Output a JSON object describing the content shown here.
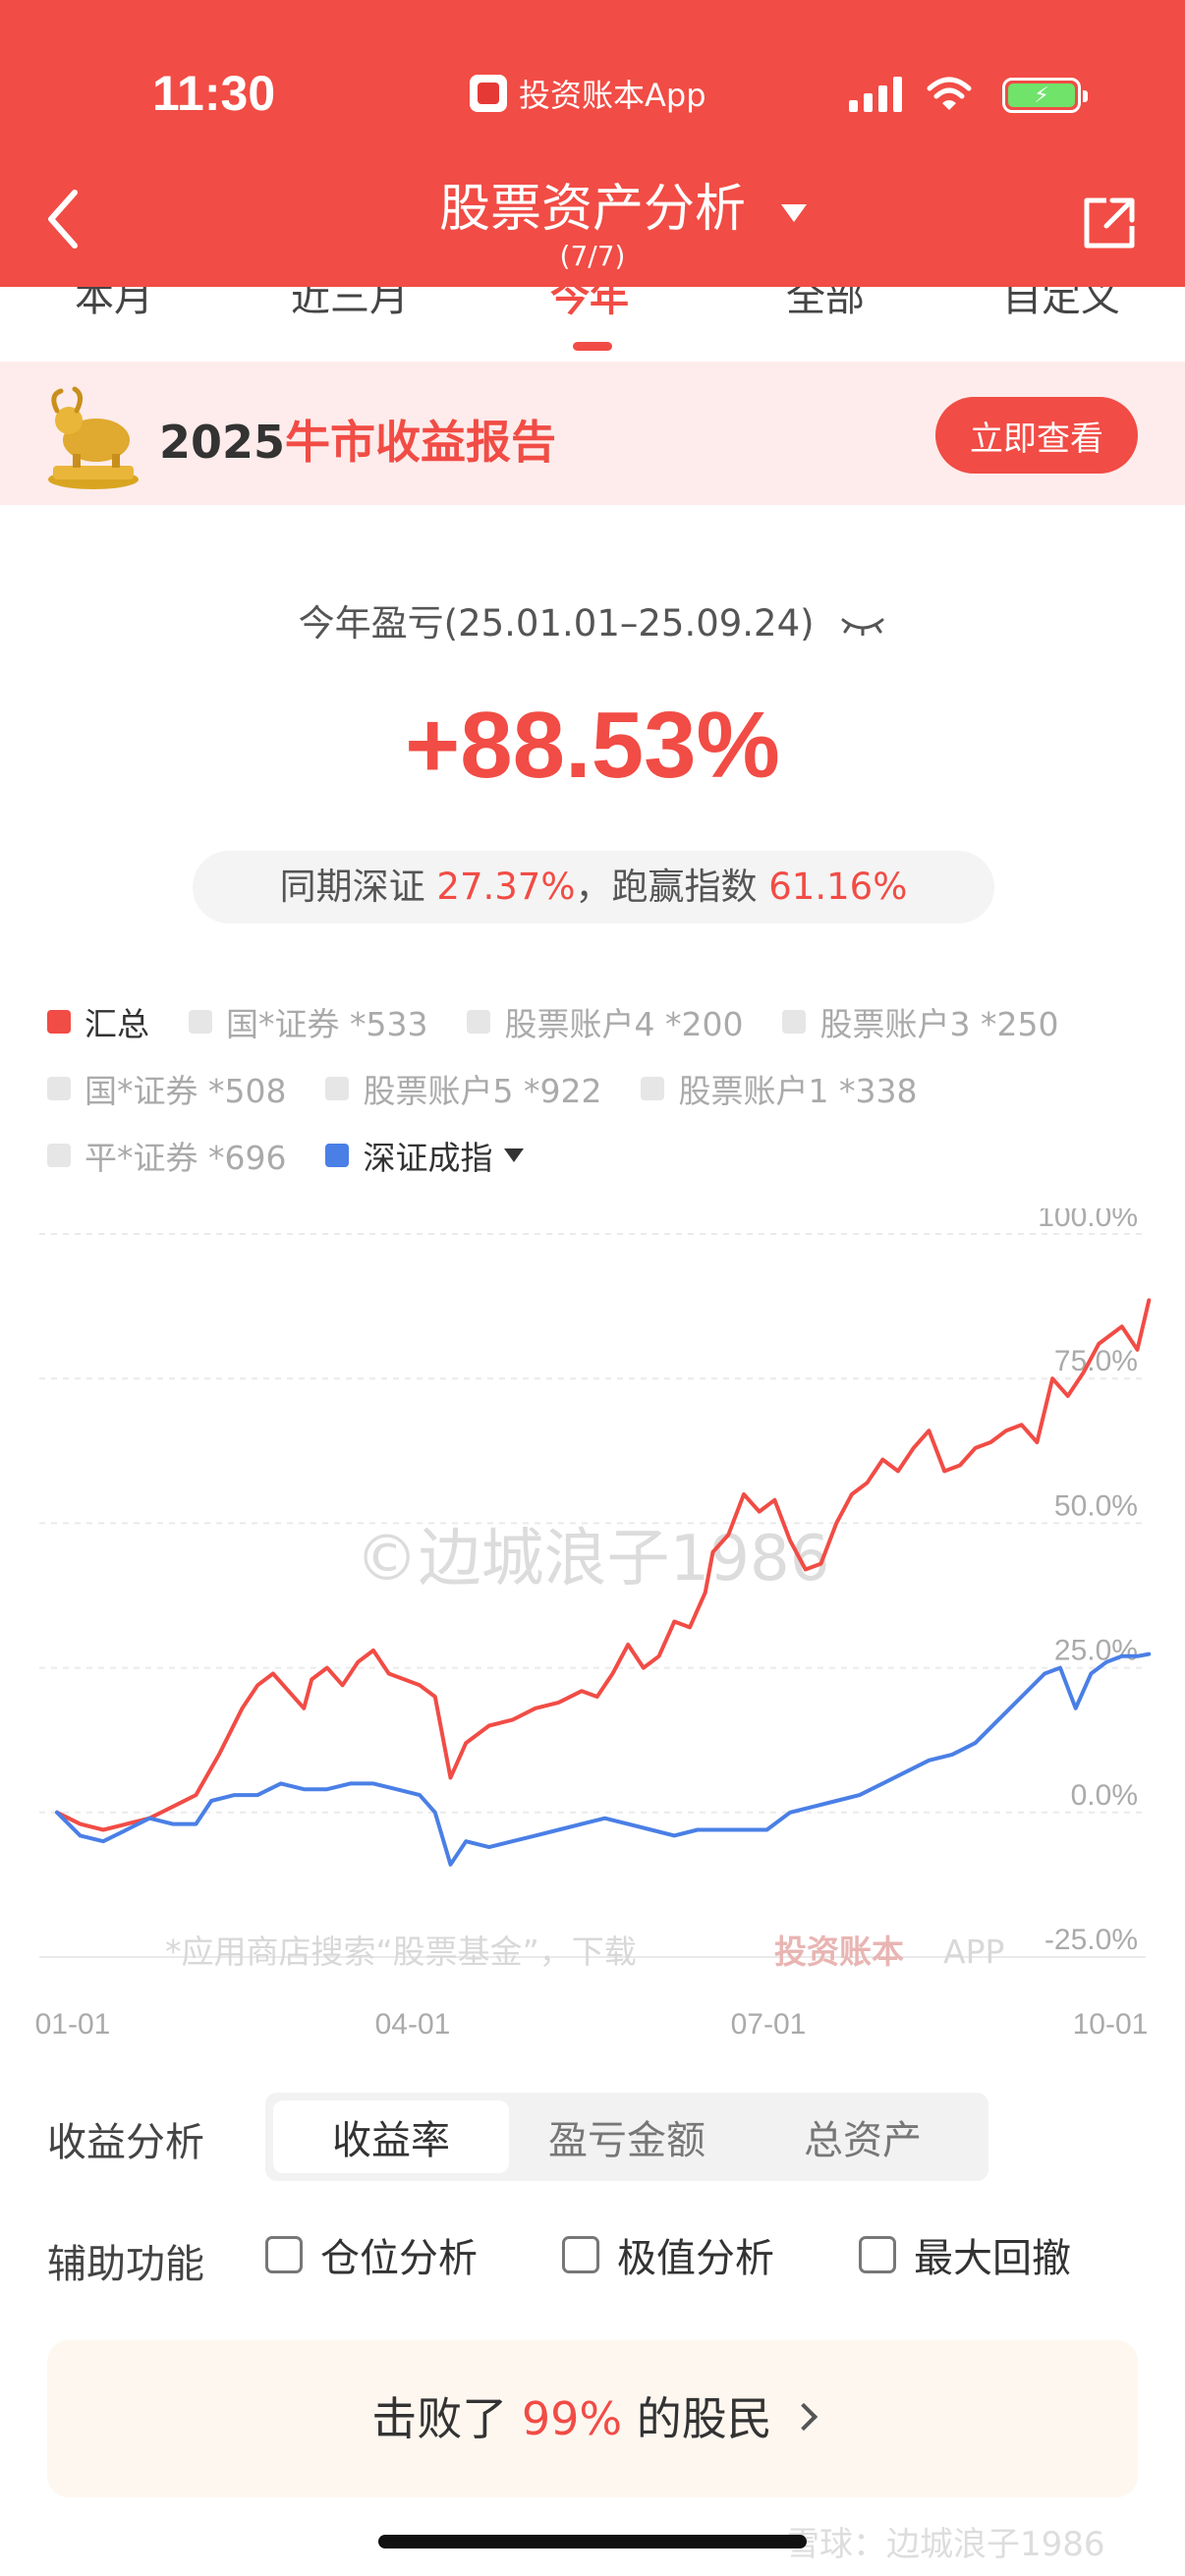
{
  "status": {
    "time": "11:30",
    "app_label": "投资账本App",
    "battery_icon": "battery-charging-icon"
  },
  "header": {
    "title": "股票资产分析",
    "subtitle": "(7/7)"
  },
  "tabs": [
    "本月",
    "近三月",
    "今年",
    "全部",
    "自定义"
  ],
  "active_tab": "今年",
  "banner": {
    "year": "2025",
    "text": "牛市收益报告",
    "button": "立即查看"
  },
  "summary": {
    "period": "今年盈亏(25.01.01–25.09.24)",
    "return_pct": "+88.53%",
    "compare_prefix": "同期深证 ",
    "compare_index_pct": "27.37%",
    "compare_mid": "，跑赢指数 ",
    "compare_beat_pct": "61.16%"
  },
  "legend": [
    {
      "label": "汇总",
      "color": "#f14c45",
      "active": true
    },
    {
      "label": "国*证券 *533",
      "color": "#e6e6e6",
      "active": false
    },
    {
      "label": "股票账户4 *200",
      "color": "#e6e6e6",
      "active": false
    },
    {
      "label": "股票账户3 *250",
      "color": "#e6e6e6",
      "active": false
    },
    {
      "label": "国*证券 *508",
      "color": "#e6e6e6",
      "active": false
    },
    {
      "label": "股票账户5 *922",
      "color": "#e6e6e6",
      "active": false
    },
    {
      "label": "股票账户1 *338",
      "color": "#e6e6e6",
      "active": false
    },
    {
      "label": "平*证券 *696",
      "color": "#e6e6e6",
      "active": false
    },
    {
      "label": "深证成指",
      "color": "#4a7fe6",
      "active": true
    }
  ],
  "chart_data": {
    "type": "line",
    "x_ticks": [
      "01-01",
      "04-01",
      "07-01",
      "10-01"
    ],
    "y_ticks": [
      "100.0%",
      "75.0%",
      "50.0%",
      "25.0%",
      "0.0%",
      "-25.0%"
    ],
    "ylim": [
      -25,
      100
    ],
    "xlim": [
      0,
      273
    ],
    "watermark": "©边城浪子1986",
    "footnote_text": "*应用商店搜索“股票基金”，下载",
    "footnote_brand": "投资账本",
    "footnote_suffix": "APP",
    "series": [
      {
        "name": "汇总",
        "color": "#f14c45",
        "points": [
          [
            0,
            0
          ],
          [
            6,
            -2
          ],
          [
            12,
            -3
          ],
          [
            18,
            -2
          ],
          [
            24,
            -1
          ],
          [
            30,
            1
          ],
          [
            36,
            3
          ],
          [
            42,
            10
          ],
          [
            48,
            18
          ],
          [
            52,
            22
          ],
          [
            56,
            24
          ],
          [
            60,
            21
          ],
          [
            64,
            18
          ],
          [
            66,
            23
          ],
          [
            70,
            25
          ],
          [
            74,
            22
          ],
          [
            78,
            26
          ],
          [
            82,
            28
          ],
          [
            86,
            24
          ],
          [
            90,
            23
          ],
          [
            94,
            22
          ],
          [
            98,
            20
          ],
          [
            102,
            6
          ],
          [
            106,
            12
          ],
          [
            112,
            15
          ],
          [
            118,
            16
          ],
          [
            124,
            18
          ],
          [
            130,
            19
          ],
          [
            136,
            21
          ],
          [
            140,
            20
          ],
          [
            144,
            24
          ],
          [
            148,
            29
          ],
          [
            152,
            25
          ],
          [
            156,
            27
          ],
          [
            160,
            33
          ],
          [
            164,
            32
          ],
          [
            168,
            38
          ],
          [
            170,
            45
          ],
          [
            174,
            48
          ],
          [
            178,
            55
          ],
          [
            182,
            52
          ],
          [
            186,
            54
          ],
          [
            190,
            47
          ],
          [
            194,
            42
          ],
          [
            198,
            43
          ],
          [
            202,
            50
          ],
          [
            206,
            55
          ],
          [
            210,
            57
          ],
          [
            214,
            61
          ],
          [
            218,
            59
          ],
          [
            222,
            63
          ],
          [
            226,
            66
          ],
          [
            230,
            59
          ],
          [
            234,
            60
          ],
          [
            238,
            63
          ],
          [
            242,
            64
          ],
          [
            246,
            66
          ],
          [
            250,
            67
          ],
          [
            254,
            64
          ],
          [
            258,
            75
          ],
          [
            262,
            72
          ],
          [
            266,
            76
          ],
          [
            270,
            81
          ],
          [
            274,
            83
          ],
          [
            276,
            84
          ],
          [
            280,
            80
          ],
          [
            283,
            88.53
          ]
        ]
      },
      {
        "name": "深证成指",
        "color": "#4a7fe6",
        "points": [
          [
            0,
            0
          ],
          [
            6,
            -4
          ],
          [
            12,
            -5
          ],
          [
            18,
            -3
          ],
          [
            24,
            -1
          ],
          [
            30,
            -2
          ],
          [
            36,
            -2
          ],
          [
            40,
            2
          ],
          [
            46,
            3
          ],
          [
            52,
            3
          ],
          [
            58,
            5
          ],
          [
            64,
            4
          ],
          [
            70,
            4
          ],
          [
            76,
            5
          ],
          [
            82,
            5
          ],
          [
            88,
            4
          ],
          [
            94,
            3
          ],
          [
            98,
            0
          ],
          [
            102,
            -9
          ],
          [
            106,
            -5
          ],
          [
            112,
            -6
          ],
          [
            118,
            -5
          ],
          [
            124,
            -4
          ],
          [
            130,
            -3
          ],
          [
            136,
            -2
          ],
          [
            142,
            -1
          ],
          [
            148,
            -2
          ],
          [
            154,
            -3
          ],
          [
            160,
            -4
          ],
          [
            166,
            -3
          ],
          [
            172,
            -3
          ],
          [
            178,
            -3
          ],
          [
            184,
            -3
          ],
          [
            190,
            0
          ],
          [
            196,
            1
          ],
          [
            202,
            2
          ],
          [
            208,
            3
          ],
          [
            214,
            5
          ],
          [
            220,
            7
          ],
          [
            226,
            9
          ],
          [
            232,
            10
          ],
          [
            238,
            12
          ],
          [
            244,
            16
          ],
          [
            250,
            20
          ],
          [
            256,
            24
          ],
          [
            260,
            25
          ],
          [
            264,
            18
          ],
          [
            268,
            24
          ],
          [
            272,
            26
          ],
          [
            276,
            27
          ],
          [
            280,
            27
          ],
          [
            283,
            27.37
          ]
        ]
      }
    ]
  },
  "analysis": {
    "label": "收益分析",
    "options": [
      "收益率",
      "盈亏金额",
      "总资产"
    ],
    "active": "收益率"
  },
  "aux": {
    "label": "辅助功能",
    "options": [
      "仓位分析",
      "极值分析",
      "最大回撤"
    ]
  },
  "beat": {
    "prefix": "击败了 ",
    "pct": "99%",
    "suffix": " 的股民"
  },
  "footer_watermark": "雪球：边城浪子1986"
}
